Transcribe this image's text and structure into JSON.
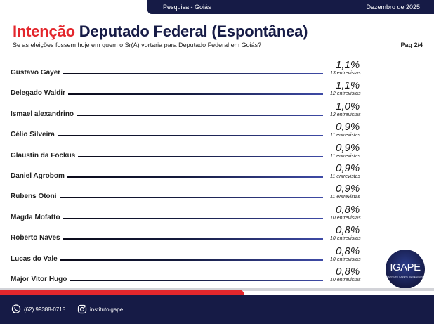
{
  "header": {
    "survey": "Pesquisa - Goiás",
    "date": "Dezembro de 2025"
  },
  "title": {
    "accent": "Intenção",
    "rest": "Deputado Federal (Espontânea)"
  },
  "subtitle": "Se as eleições fossem hoje em quem o Sr(A) vortaria para Deputado Federal em Goiás?",
  "page_label": "Pag 2/4",
  "logo": {
    "text": "IGAPE",
    "tagline": "INSTITUTO GAZETA DE PESQUISA"
  },
  "footer": {
    "phone": "(62) 99388-0715",
    "instagram": "institutoigape"
  },
  "colors": {
    "navy": "#161b46",
    "red": "#e3272d"
  },
  "chart_data": {
    "type": "bar",
    "categories": [
      "Gustavo Gayer",
      "Delegado Waldir",
      "Ismael alexandrino",
      "Célio Silveira",
      "Glaustin da Fockus",
      "Daniel Agrobom",
      "Rubens Otoni",
      "Magda Mofatto",
      "Roberto Naves",
      "Lucas do Vale",
      "Major Vitor Hugo"
    ],
    "values": [
      1.1,
      1.1,
      1.0,
      0.9,
      0.9,
      0.9,
      0.9,
      0.8,
      0.8,
      0.8,
      0.8
    ],
    "value_labels": [
      "1,1%",
      "1,1%",
      "1,0%",
      "0,9%",
      "0,9%",
      "0,9%",
      "0,9%",
      "0,8%",
      "0,8%",
      "0,8%",
      "0,8%"
    ],
    "counts": [
      "13 entrevistas",
      "12 entrevistas",
      "12 entrevistas",
      "11 entrevistas",
      "11 entrevistas",
      "11 entrevistas",
      "11 entrevistas",
      "10 entrevistas",
      "10 entrevistas",
      "10 entrevistas",
      "10 entrevistas"
    ]
  }
}
